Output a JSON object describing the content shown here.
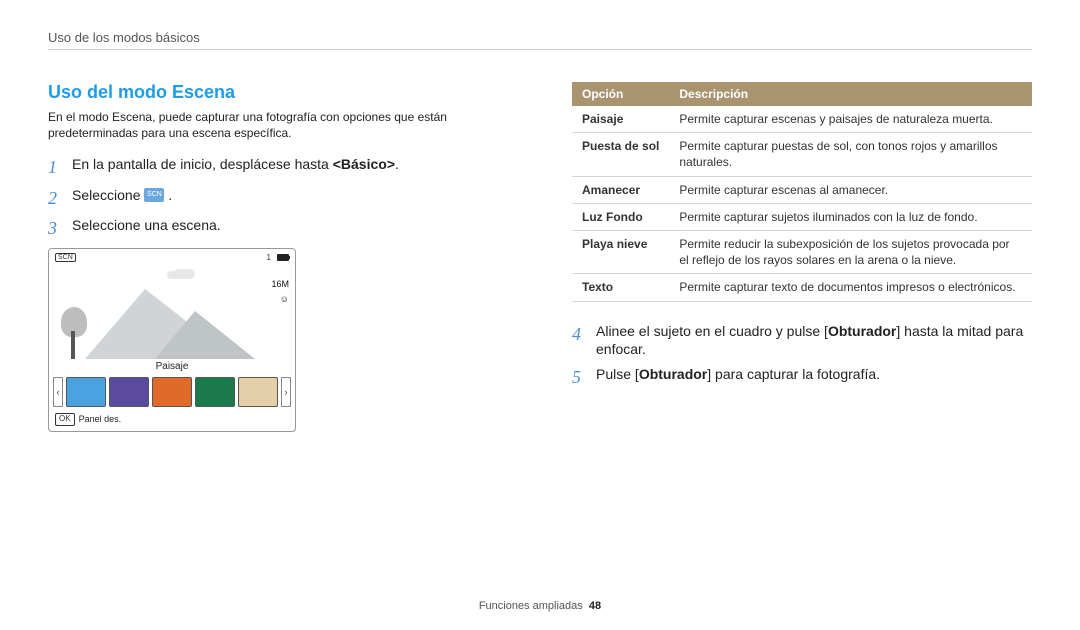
{
  "header": "Uso de los modos básicos",
  "section_title": "Uso del modo Escena",
  "intro": "En el modo Escena, puede capturar una fotografía con opciones que están predeterminadas para una escena específica.",
  "steps_left": {
    "s1": {
      "num": "1",
      "text_before": "En la pantalla de inicio, desplácese hasta ",
      "bold": "<Básico>",
      "text_after": "."
    },
    "s2": {
      "num": "2",
      "text_before": "Seleccione ",
      "icon_label": "SCN",
      "text_after": "."
    },
    "s3": {
      "num": "3",
      "text": "Seleccione una escena."
    }
  },
  "camera": {
    "tag": "SCN",
    "count": "1",
    "res": "16M",
    "face": "☺",
    "scene_label": "Paisaje",
    "ok": "OK",
    "panel": "Panel des.",
    "thumb_colors": [
      "#4aa3e0",
      "#5a4aa0",
      "#e06a2a",
      "#1a7a4a",
      "#e4cfa8",
      "#d6c4e8"
    ]
  },
  "table": {
    "head_opt": "Opción",
    "head_desc": "Descripción",
    "rows": [
      {
        "opt": "Paisaje",
        "desc": "Permite capturar escenas y paisajes de naturaleza muerta."
      },
      {
        "opt": "Puesta de sol",
        "desc": "Permite capturar puestas de sol, con tonos rojos y amarillos naturales."
      },
      {
        "opt": "Amanecer",
        "desc": "Permite capturar escenas al amanecer."
      },
      {
        "opt": "Luz Fondo",
        "desc": "Permite capturar sujetos iluminados con la luz de fondo."
      },
      {
        "opt": "Playa nieve",
        "desc": "Permite reducir la subexposición de los sujetos provocada por el reflejo de los rayos solares en la arena o la nieve."
      },
      {
        "opt": "Texto",
        "desc": "Permite capturar texto de documentos impresos o electrónicos."
      }
    ]
  },
  "steps_right": {
    "s4": {
      "num": "4",
      "pre": "Alinee el sujeto en el cuadro y pulse [",
      "bold": "Obturador",
      "post": "] hasta la mitad para enfocar."
    },
    "s5": {
      "num": "5",
      "pre": "Pulse [",
      "bold": "Obturador",
      "post": "] para capturar la fotografía."
    }
  },
  "footer": {
    "label": "Funciones ampliadas",
    "page": "48"
  }
}
